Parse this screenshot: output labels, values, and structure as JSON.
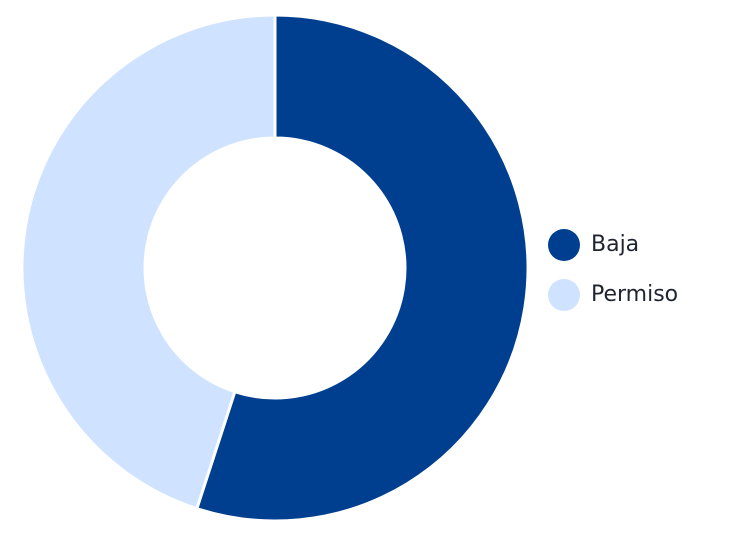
{
  "chart_data": {
    "type": "pie",
    "subtype": "donut",
    "series": [
      {
        "name": "Baja",
        "value": 55,
        "color": "#003f8f"
      },
      {
        "name": "Permiso",
        "value": 45,
        "color": "#cfe2ff"
      }
    ],
    "title": "",
    "legend_position": "right",
    "grid": false
  }
}
